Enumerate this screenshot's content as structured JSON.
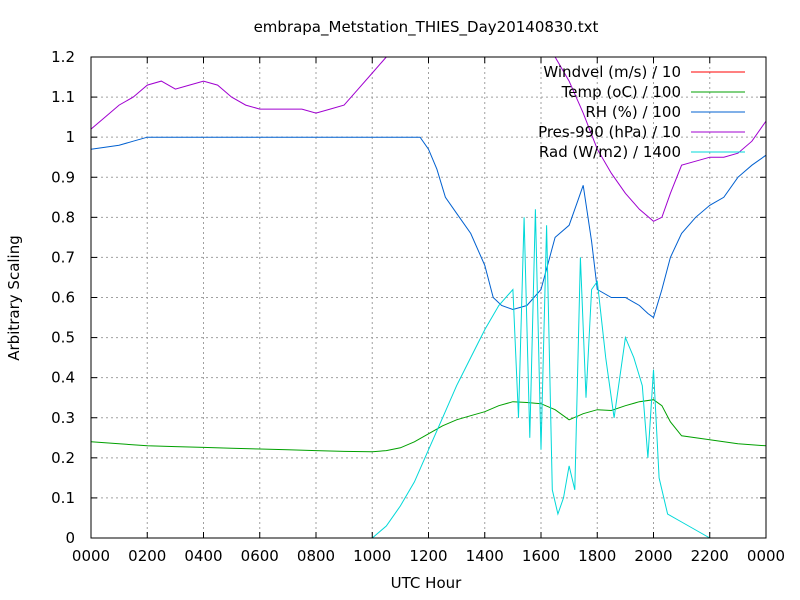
{
  "chart_data": {
    "type": "line",
    "title": "embrapa_Metstation_THIES_Day20140830.txt",
    "xlabel": "UTC Hour",
    "ylabel": "Arbitrary Scaling",
    "xlim": [
      0,
      24
    ],
    "ylim": [
      0,
      1.2
    ],
    "grid": true,
    "legend_position": "top-right",
    "x_ticks": [
      {
        "value": 0,
        "label": "0000"
      },
      {
        "value": 2,
        "label": "0200"
      },
      {
        "value": 4,
        "label": "0400"
      },
      {
        "value": 6,
        "label": "0600"
      },
      {
        "value": 8,
        "label": "0800"
      },
      {
        "value": 10,
        "label": "1000"
      },
      {
        "value": 12,
        "label": "1200"
      },
      {
        "value": 14,
        "label": "1400"
      },
      {
        "value": 16,
        "label": "1600"
      },
      {
        "value": 18,
        "label": "1800"
      },
      {
        "value": 20,
        "label": "2000"
      },
      {
        "value": 22,
        "label": "2200"
      },
      {
        "value": 24,
        "label": "0000"
      }
    ],
    "y_ticks": [
      {
        "value": 0,
        "label": "0"
      },
      {
        "value": 0.1,
        "label": "0.1"
      },
      {
        "value": 0.2,
        "label": "0.2"
      },
      {
        "value": 0.3,
        "label": "0.3"
      },
      {
        "value": 0.4,
        "label": "0.4"
      },
      {
        "value": 0.5,
        "label": "0.5"
      },
      {
        "value": 0.6,
        "label": "0.6"
      },
      {
        "value": 0.7,
        "label": "0.7"
      },
      {
        "value": 0.8,
        "label": "0.8"
      },
      {
        "value": 0.9,
        "label": "0.9"
      },
      {
        "value": 1.0,
        "label": "1"
      },
      {
        "value": 1.1,
        "label": "1.1"
      },
      {
        "value": 1.2,
        "label": "1.2"
      }
    ],
    "series": [
      {
        "name": "Windvel (m/s) / 10",
        "color": "#ff0000",
        "x": [],
        "y": []
      },
      {
        "name": "Temp (oC) / 100",
        "color": "#00a000",
        "x": [
          0,
          1,
          2,
          3,
          4,
          5,
          6,
          7,
          8,
          9,
          10,
          10.5,
          11,
          11.5,
          12,
          12.5,
          13,
          13.5,
          14,
          14.5,
          15,
          15.5,
          16,
          16.5,
          17,
          17.5,
          18,
          18.5,
          19,
          19.5,
          20,
          20.3,
          20.6,
          21,
          22,
          23,
          24
        ],
        "y": [
          0.24,
          0.235,
          0.23,
          0.228,
          0.226,
          0.224,
          0.222,
          0.22,
          0.218,
          0.216,
          0.215,
          0.218,
          0.225,
          0.24,
          0.26,
          0.28,
          0.295,
          0.305,
          0.315,
          0.33,
          0.34,
          0.338,
          0.335,
          0.32,
          0.295,
          0.31,
          0.32,
          0.318,
          0.33,
          0.34,
          0.345,
          0.33,
          0.29,
          0.255,
          0.245,
          0.235,
          0.23
        ]
      },
      {
        "name": "RH (%) / 100",
        "color": "#0060d0",
        "x": [
          0,
          0.5,
          1,
          1.5,
          2,
          3,
          4,
          5,
          6,
          7,
          8,
          9,
          10,
          11,
          11.7,
          12,
          12.3,
          12.6,
          13,
          13.5,
          14,
          14.3,
          14.6,
          15,
          15.5,
          16,
          16.5,
          17,
          17.3,
          17.5,
          17.8,
          18,
          18.5,
          19,
          19.5,
          19.8,
          20,
          20.3,
          20.6,
          21,
          21.5,
          22,
          22.5,
          23,
          23.5,
          24
        ],
        "y": [
          0.97,
          0.975,
          0.98,
          0.99,
          1.0,
          1.0,
          1.0,
          1.0,
          1.0,
          1.0,
          1.0,
          1.0,
          1.0,
          1.0,
          1.0,
          0.97,
          0.92,
          0.85,
          0.81,
          0.76,
          0.68,
          0.6,
          0.58,
          0.57,
          0.58,
          0.62,
          0.75,
          0.78,
          0.84,
          0.88,
          0.74,
          0.62,
          0.6,
          0.6,
          0.58,
          0.56,
          0.55,
          0.62,
          0.7,
          0.76,
          0.8,
          0.83,
          0.85,
          0.9,
          0.93,
          0.955
        ]
      },
      {
        "name": "Pres-990 (hPa) / 10",
        "color": "#a000d0",
        "x": [
          0,
          0.5,
          1,
          1.5,
          2,
          2.5,
          3,
          3.5,
          4,
          4.5,
          5,
          5.5,
          6,
          6.5,
          7,
          7.5,
          8,
          8.5,
          9,
          9.5,
          10,
          10.5,
          16.5,
          17,
          17.5,
          18,
          18.5,
          19,
          19.5,
          20,
          20.3,
          20.6,
          21,
          21.5,
          22,
          22.5,
          23,
          23.5,
          24
        ],
        "y": [
          1.02,
          1.05,
          1.08,
          1.1,
          1.13,
          1.14,
          1.12,
          1.13,
          1.14,
          1.13,
          1.1,
          1.08,
          1.07,
          1.07,
          1.07,
          1.07,
          1.06,
          1.07,
          1.08,
          1.12,
          1.16,
          1.2,
          1.2,
          1.14,
          1.06,
          0.97,
          0.91,
          0.86,
          0.82,
          0.79,
          0.8,
          0.86,
          0.93,
          0.94,
          0.95,
          0.95,
          0.96,
          0.99,
          1.04
        ]
      },
      {
        "name": "Rad (W/m2) / 1400",
        "color": "#00d8d8",
        "x": [
          0,
          10,
          10.5,
          11,
          11.5,
          12,
          12.5,
          13,
          13.5,
          14,
          14.5,
          15,
          15.2,
          15.4,
          15.6,
          15.8,
          16,
          16.2,
          16.4,
          16.6,
          16.8,
          17,
          17.2,
          17.4,
          17.6,
          17.8,
          18,
          18.3,
          18.6,
          19,
          19.3,
          19.6,
          19.8,
          20,
          20.2,
          20.5,
          21,
          21.5,
          22,
          24
        ],
        "y": [
          0,
          0,
          0.03,
          0.08,
          0.14,
          0.22,
          0.3,
          0.38,
          0.45,
          0.52,
          0.58,
          0.62,
          0.3,
          0.8,
          0.25,
          0.82,
          0.22,
          0.78,
          0.12,
          0.06,
          0.1,
          0.18,
          0.12,
          0.7,
          0.35,
          0.62,
          0.64,
          0.45,
          0.3,
          0.5,
          0.45,
          0.38,
          0.2,
          0.42,
          0.15,
          0.06,
          0.04,
          0.02,
          0.0,
          0.0
        ]
      }
    ]
  }
}
